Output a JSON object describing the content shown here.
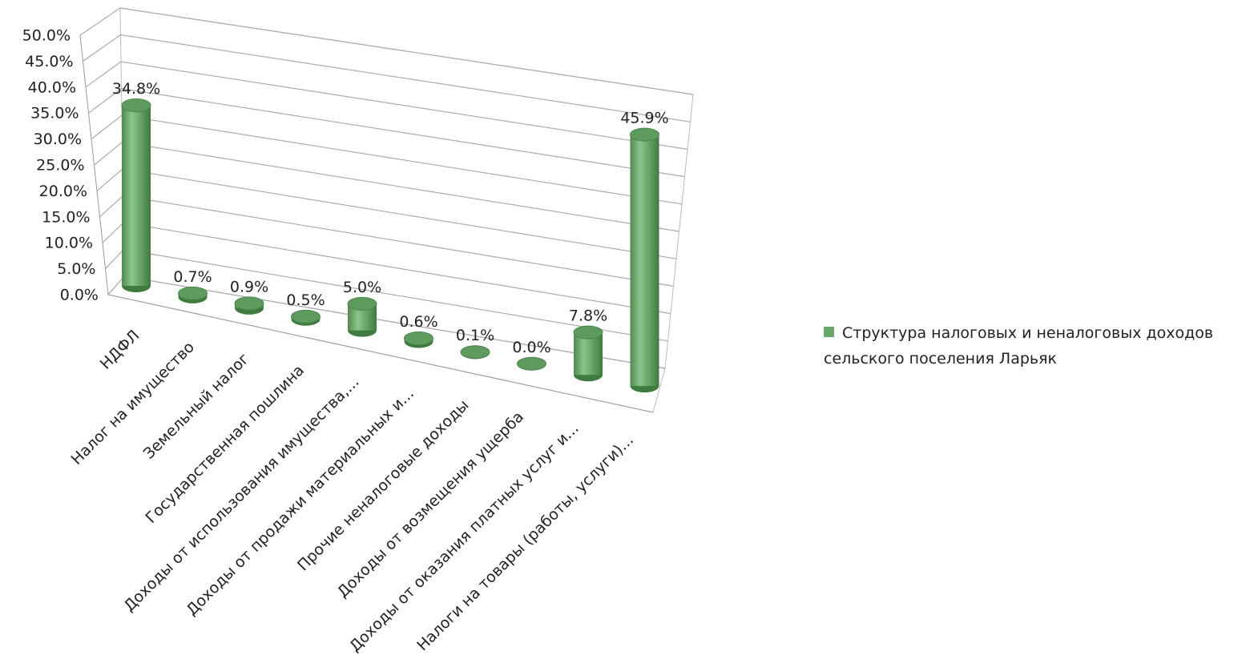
{
  "chart_data": {
    "type": "bar3d",
    "categories": [
      "НДФЛ",
      "Налог на имущество",
      "Земельный налог",
      "Государственная пошлина",
      "Доходы от использования имущества,...",
      "Доходы от продажи материальных и...",
      "Прочие неналоговые доходы",
      "Доходы от возмещения ущерба",
      "Доходы от оказания платных услуг и...",
      "Налоги на товары (работы, услуги)..."
    ],
    "series": [
      {
        "name": "Структура налоговых и неналоговых доходов сельского поселения Ларьяк",
        "color": "#6aa86a",
        "values": [
          34.8,
          0.7,
          0.9,
          0.5,
          5.0,
          0.6,
          0.1,
          0.0,
          7.8,
          45.9
        ],
        "value_labels": [
          "34.8%",
          "0.7%",
          "0.9%",
          "0.5%",
          "5.0%",
          "0.6%",
          "0.1%",
          "0.0%",
          "7.8%",
          "45.9%"
        ]
      }
    ],
    "ylim": [
      0,
      50
    ],
    "yticks": [
      {
        "value": 0,
        "label": "0.0%"
      },
      {
        "value": 5,
        "label": "5.0%"
      },
      {
        "value": 10,
        "label": "10.0%"
      },
      {
        "value": 15,
        "label": "15.0%"
      },
      {
        "value": 20,
        "label": "20.0%"
      },
      {
        "value": 25,
        "label": "25.0%"
      },
      {
        "value": 30,
        "label": "30.0%"
      },
      {
        "value": 35,
        "label": "35.0%"
      },
      {
        "value": 40,
        "label": "40.0%"
      },
      {
        "value": 45,
        "label": "45.0%"
      },
      {
        "value": 50,
        "label": "50.0%"
      }
    ],
    "grid": true,
    "legend": "right"
  }
}
